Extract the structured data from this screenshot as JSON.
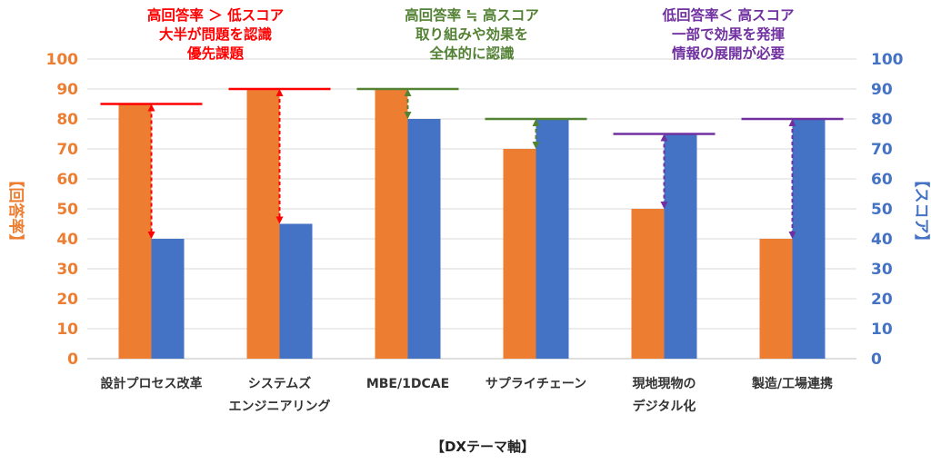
{
  "chart_data": {
    "type": "bar",
    "categories": [
      [
        "設計プロセス改革"
      ],
      [
        "システムズ",
        "エンジニアリング"
      ],
      [
        "MBE/1DCAE"
      ],
      [
        "サプライチェーン"
      ],
      [
        "現地現物の",
        "デジタル化"
      ],
      [
        "製造/工場連携"
      ]
    ],
    "series": [
      {
        "name": "回答率",
        "color": "#ED7D31",
        "axis": "left",
        "values": [
          85,
          90,
          90,
          70,
          50,
          40
        ]
      },
      {
        "name": "スコア",
        "color": "#4472C4",
        "axis": "right",
        "values": [
          40,
          45,
          80,
          80,
          75,
          80
        ]
      }
    ],
    "reference_lines": [
      {
        "value": 85,
        "color": "#FF0000"
      },
      {
        "value": 90,
        "color": "#FF0000"
      },
      {
        "value": 90,
        "color": "#548235"
      },
      {
        "value": 80,
        "color": "#548235"
      },
      {
        "value": 75,
        "color": "#7030A0"
      },
      {
        "value": 80,
        "color": "#7030A0"
      }
    ],
    "arrows": [
      {
        "from": 85,
        "to": 40,
        "color": "#FF0000"
      },
      {
        "from": 90,
        "to": 45,
        "color": "#FF0000"
      },
      {
        "from": 90,
        "to": 80,
        "color": "#548235"
      },
      {
        "from": 80,
        "to": 70,
        "color": "#548235"
      },
      {
        "from": 75,
        "to": 50,
        "color": "#7030A0"
      },
      {
        "from": 80,
        "to": 40,
        "color": "#7030A0"
      }
    ],
    "y_left": {
      "label": "【回答率】",
      "min": 0,
      "max": 100,
      "ticks": [
        0,
        10,
        20,
        30,
        40,
        50,
        60,
        70,
        80,
        90,
        100
      ],
      "color": "#ED7D31"
    },
    "y_right": {
      "label": "【スコア】",
      "min": 0,
      "max": 100,
      "ticks": [
        0,
        10,
        20,
        30,
        40,
        50,
        60,
        70,
        80,
        90,
        100
      ],
      "color": "#4472C4"
    },
    "xlabel": "【DXテーマ軸】",
    "annotations": [
      {
        "lines": [
          "高回答率 ＞ 低スコア",
          "大半が問題を認識",
          "優先課題"
        ],
        "color": "#FF0000"
      },
      {
        "lines": [
          "高回答率 ≒ 高スコア",
          "取り組みや効果を",
          "全体的に認識"
        ],
        "color": "#548235"
      },
      {
        "lines": [
          "低回答率＜ 高スコア",
          "一部で効果を発揮",
          "情報の展開が必要"
        ],
        "color": "#7030A0"
      }
    ],
    "grid": true
  }
}
